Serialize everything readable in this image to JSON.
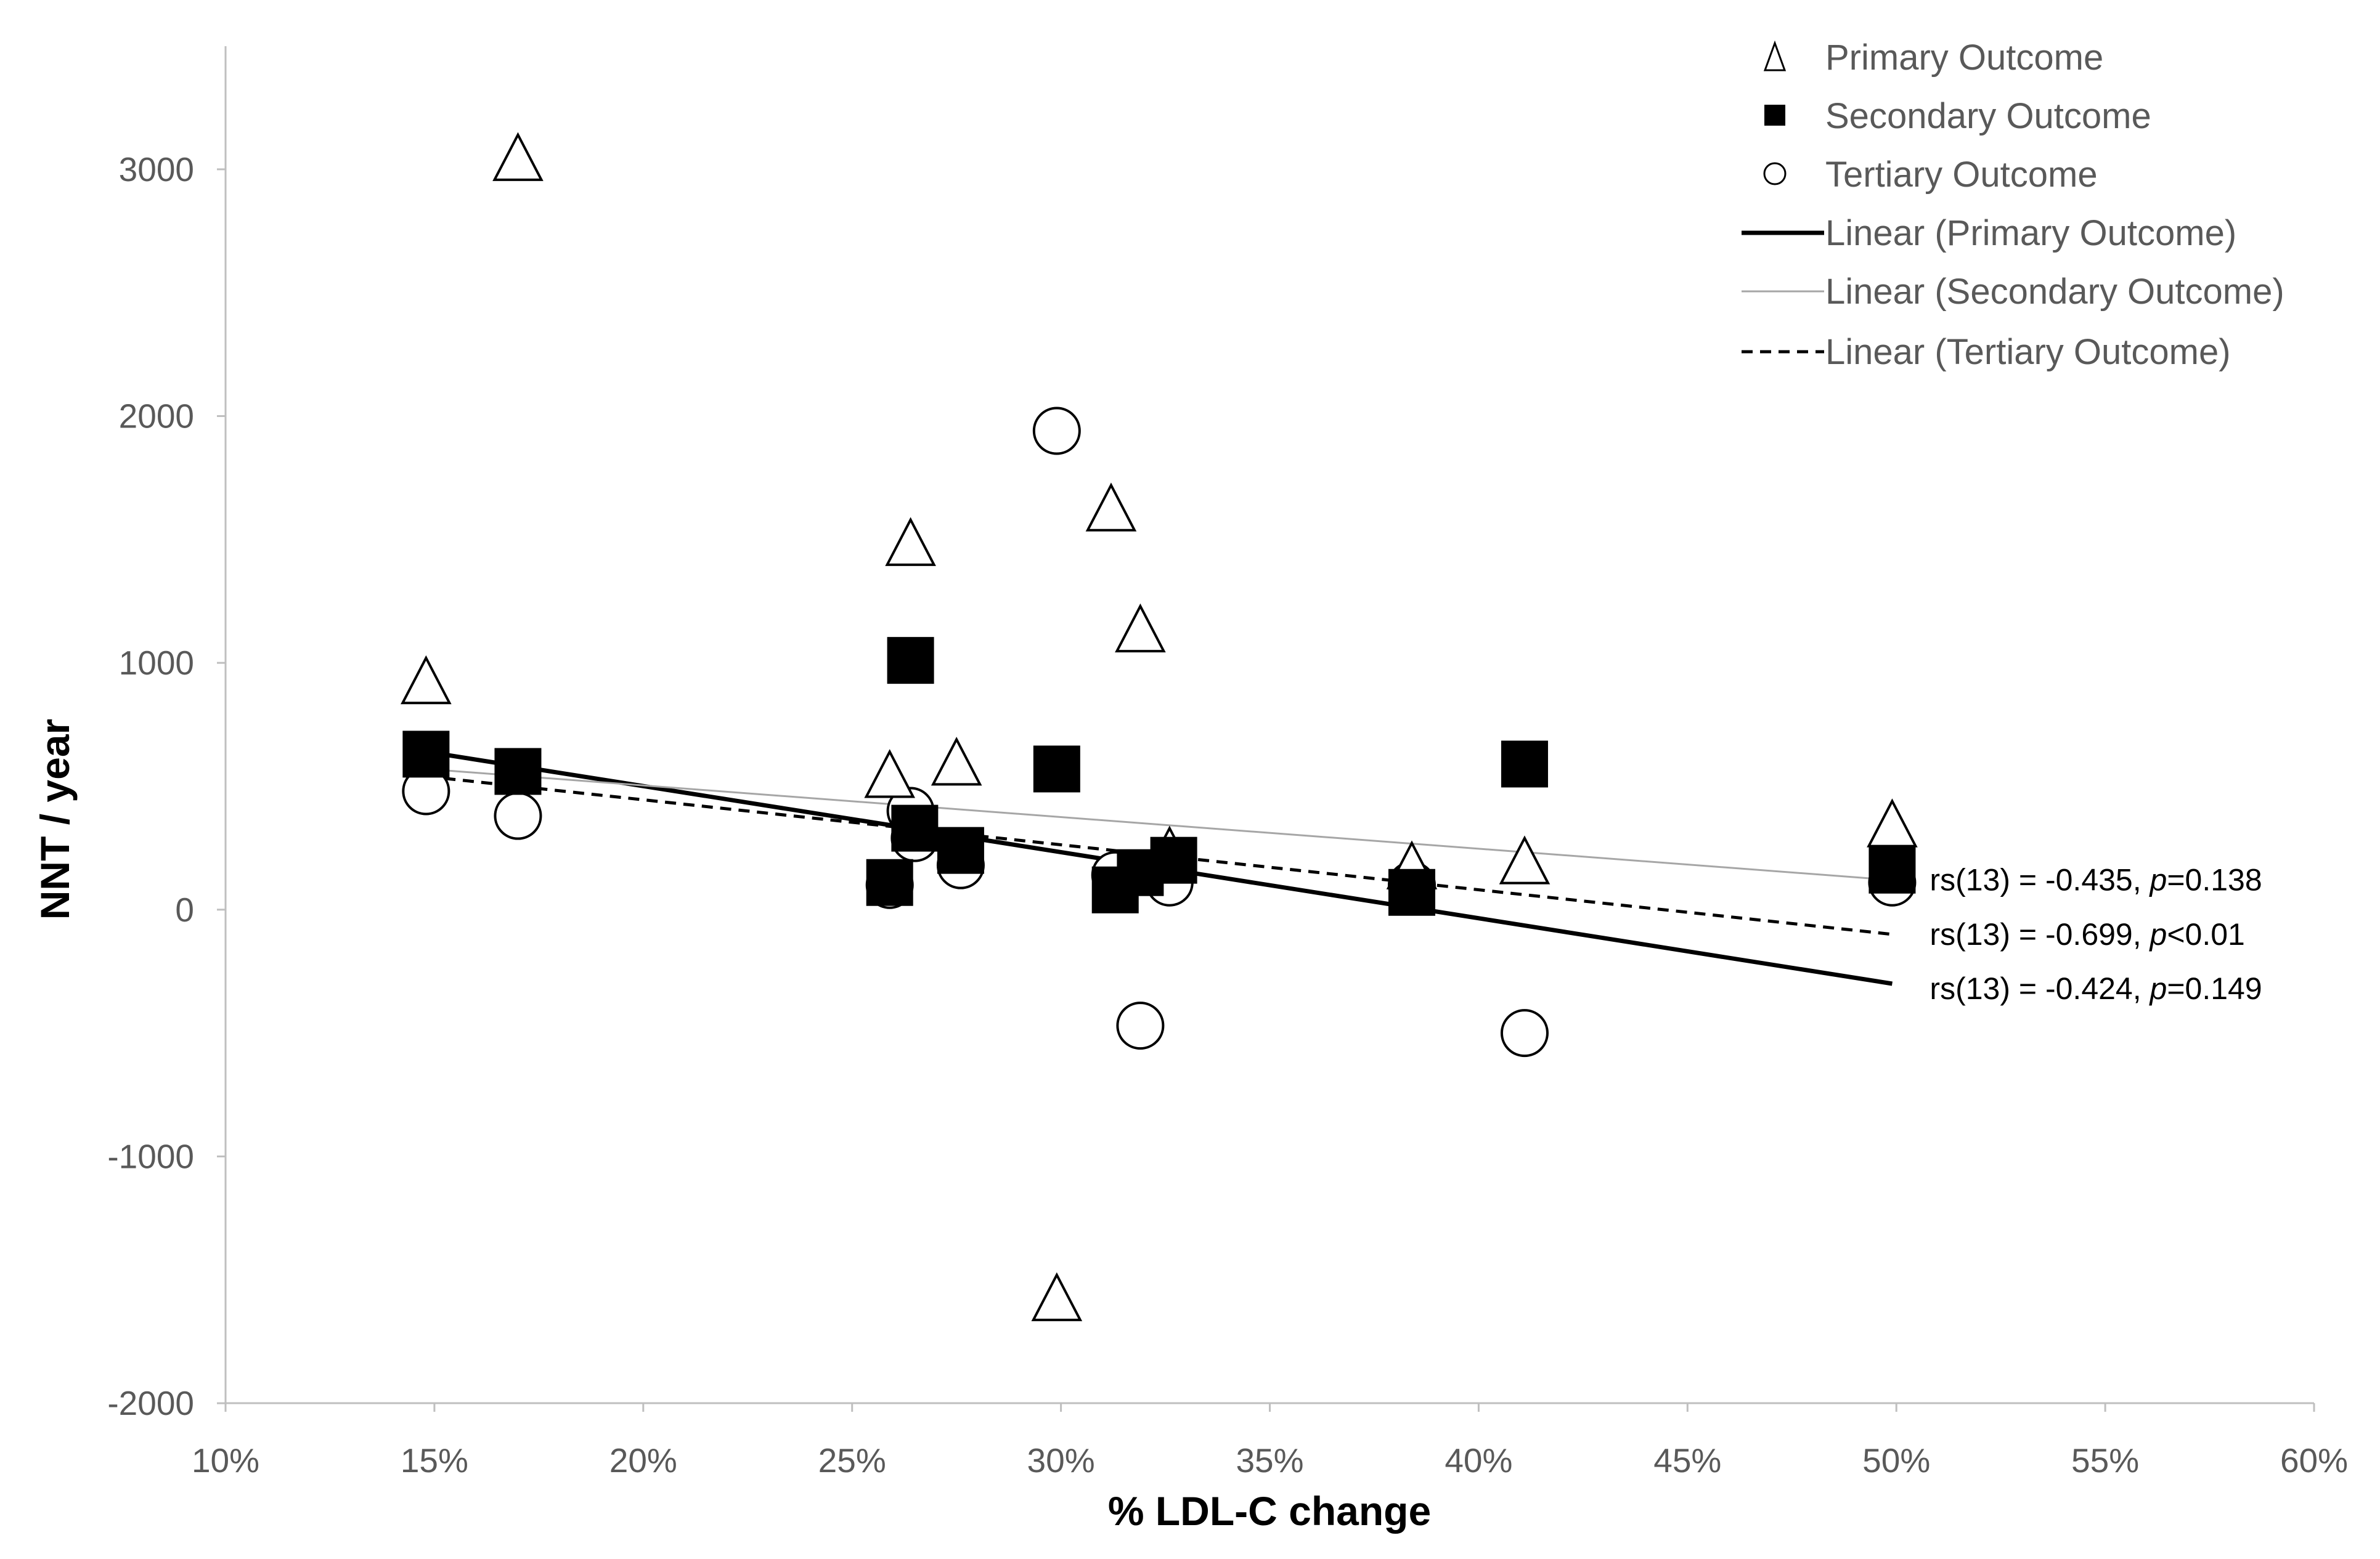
{
  "chart_data": {
    "type": "scatter",
    "title": "",
    "xlabel": "% LDL-C change",
    "ylabel": "NNT / year",
    "xlim": [
      10,
      60
    ],
    "ylim": [
      -2000,
      3500
    ],
    "x_ticks": [
      10,
      15,
      20,
      25,
      30,
      35,
      40,
      45,
      50,
      55,
      60
    ],
    "x_tick_labels": [
      "10%",
      "15%",
      "20%",
      "25%",
      "30%",
      "35%",
      "40%",
      "45%",
      "50%",
      "55%",
      "60%"
    ],
    "y_ticks": [
      -2000,
      -1000,
      0,
      1000,
      2000,
      3000
    ],
    "y_tick_labels": [
      "-2000",
      "-1000",
      "0",
      "1000",
      "2000",
      "3000"
    ],
    "grid": false,
    "legend_position": "top-right",
    "series": [
      {
        "name": "Primary Outcome",
        "marker": "triangle",
        "color": "#000000",
        "points": [
          [
            14.8,
            920
          ],
          [
            17,
            3040
          ],
          [
            25.9,
            540
          ],
          [
            26.4,
            1480
          ],
          [
            27.5,
            590
          ],
          [
            29.9,
            -1580
          ],
          [
            31.2,
            1620
          ],
          [
            31.9,
            1130
          ],
          [
            32.6,
            230
          ],
          [
            38.4,
            170
          ],
          [
            41.1,
            190
          ],
          [
            49.9,
            340
          ]
        ]
      },
      {
        "name": "Secondary Outcome",
        "marker": "square",
        "color": "#000000",
        "points": [
          [
            14.8,
            630
          ],
          [
            17,
            560
          ],
          [
            25.9,
            110
          ],
          [
            26.4,
            1010
          ],
          [
            26.5,
            330
          ],
          [
            27.6,
            240
          ],
          [
            29.9,
            570
          ],
          [
            31.3,
            80
          ],
          [
            31.9,
            150
          ],
          [
            32.7,
            200
          ],
          [
            38.4,
            70
          ],
          [
            41.1,
            590
          ],
          [
            49.9,
            160
          ]
        ]
      },
      {
        "name": "Tertiary Outcome",
        "marker": "circle",
        "color": "#000000",
        "points": [
          [
            14.8,
            480
          ],
          [
            17,
            380
          ],
          [
            25.9,
            100
          ],
          [
            26.4,
            400
          ],
          [
            26.5,
            290
          ],
          [
            27.6,
            180
          ],
          [
            29.9,
            1940
          ],
          [
            31.3,
            140
          ],
          [
            31.9,
            -470
          ],
          [
            32.6,
            110
          ],
          [
            38.4,
            100
          ],
          [
            41.1,
            -500
          ],
          [
            49.9,
            110
          ]
        ]
      }
    ],
    "trendlines": [
      {
        "name": "Linear (Primary Outcome)",
        "style": "solid",
        "color": "#000000",
        "x": [
          14.8,
          49.9
        ],
        "y": [
          640,
          -300
        ]
      },
      {
        "name": "Linear (Secondary Outcome)",
        "style": "thin",
        "color": "#a6a6a6",
        "x": [
          14.8,
          49.9
        ],
        "y": [
          570,
          120
        ]
      },
      {
        "name": "Linear (Tertiary Outcome)",
        "style": "dashed",
        "color": "#000000",
        "x": [
          14.8,
          49.9
        ],
        "y": [
          540,
          -100
        ]
      }
    ],
    "annotations": [
      {
        "text_prefix": "rs(13) = -0.435, ",
        "p_italic": "p",
        "text_suffix": "=0.138",
        "x": 50.8,
        "y": 120
      },
      {
        "text_prefix": "rs(13) = -0.699, ",
        "p_italic": "p",
        "text_suffix": "<0.01",
        "x": 50.8,
        "y": -100
      },
      {
        "text_prefix": "rs(13) = -0.424, ",
        "p_italic": "p",
        "text_suffix": "=0.149",
        "x": 50.8,
        "y": -320
      }
    ]
  }
}
